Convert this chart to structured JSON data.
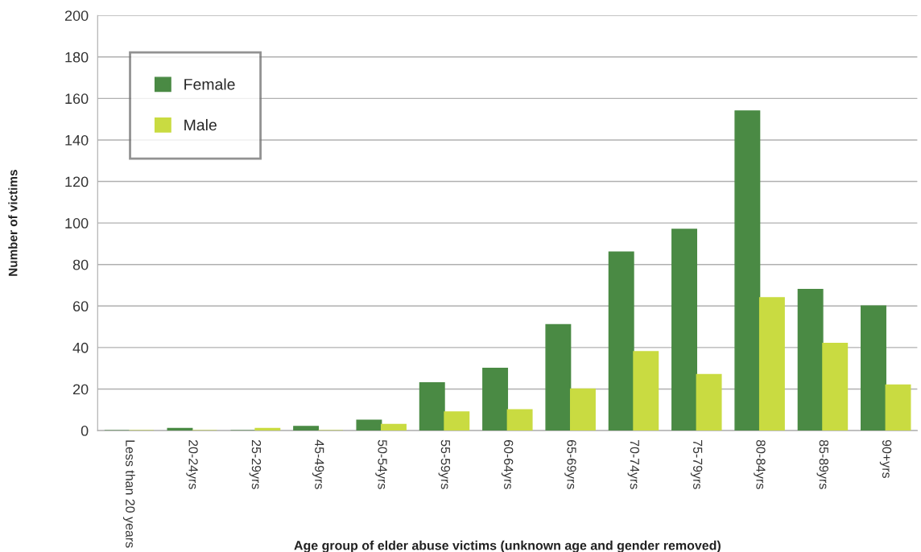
{
  "chart_data": {
    "type": "bar",
    "xlabel": "Age group of elder abuse victims (unknown age and gender removed)",
    "ylabel": "Number of victims",
    "categories": [
      "Less than 20 years",
      "20-24yrs",
      "25-29yrs",
      "45-49yrs",
      "50-54yrs",
      "55-59yrs",
      "60-64yrs",
      "65-69yrs",
      "70-74yrs",
      "75-79yrs",
      "80-84yrs",
      "85-89yrs",
      "90+yrs"
    ],
    "series": [
      {
        "name": "Female",
        "color": "#4a8a44",
        "values": [
          0,
          1,
          0,
          2,
          5,
          23,
          30,
          51,
          86,
          97,
          154,
          68,
          60
        ]
      },
      {
        "name": "Male",
        "color": "#c9db41",
        "values": [
          0,
          0,
          1,
          0,
          3,
          9,
          10,
          20,
          38,
          27,
          64,
          42,
          22
        ]
      }
    ],
    "ylim": [
      0,
      200
    ],
    "yticks": [
      0,
      20,
      40,
      60,
      80,
      100,
      120,
      140,
      160,
      180,
      200
    ],
    "grid": "y",
    "legend": "top left"
  }
}
